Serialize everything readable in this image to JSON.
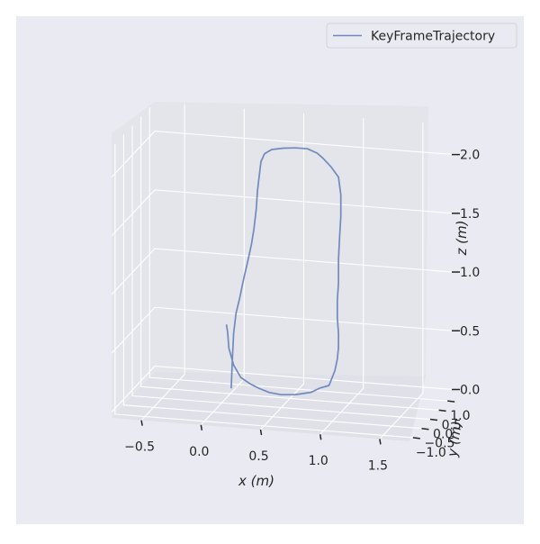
{
  "chart_data": {
    "type": "line",
    "projection": "3d",
    "title": "",
    "xlabel": "x (m)",
    "ylabel": "y (m)",
    "zlabel": "z (m)",
    "x_ticks": [
      "−0.5",
      "0.0",
      "0.5",
      "1.0",
      "1.5"
    ],
    "y_ticks": [
      "−1.0",
      "−0.5",
      "0.0",
      "0.5",
      "1.0"
    ],
    "z_ticks": [
      "0.0",
      "0.5",
      "1.0",
      "1.5",
      "2.0"
    ],
    "xlim": [
      -0.75,
      1.75
    ],
    "ylim": [
      -1.2,
      1.3
    ],
    "zlim": [
      -0.05,
      2.25
    ],
    "grid": true,
    "legend_position": "top-right",
    "series": [
      {
        "name": "KeyFrameTrajectory",
        "color": "#6f8bbe",
        "x": [
          0.08,
          0.09,
          0.1,
          0.12,
          0.15,
          0.18,
          0.22,
          0.25,
          0.27,
          0.29,
          0.3,
          0.32,
          0.33,
          0.36,
          0.42,
          0.52,
          0.62,
          0.72,
          0.8,
          0.85,
          0.92,
          0.98,
          1.0,
          1.0,
          0.99,
          0.98,
          0.98,
          0.97,
          0.97,
          0.98,
          0.98,
          0.97,
          0.95,
          0.92,
          0.9,
          0.82,
          0.75,
          0.62,
          0.5,
          0.4,
          0.31,
          0.24,
          0.16,
          0.1,
          0.06,
          0.05,
          0.04
        ],
        "y": [
          0,
          0,
          0,
          0,
          0,
          0,
          0,
          0,
          0,
          0,
          0,
          0,
          0,
          0,
          0,
          0,
          0,
          0,
          0,
          0,
          0,
          0,
          0,
          0,
          0,
          0,
          0,
          0,
          0,
          0,
          0,
          0,
          0,
          0,
          0,
          0,
          0,
          0,
          0,
          0,
          0,
          0,
          0,
          0,
          0,
          0,
          0
        ],
        "z": [
          0.08,
          0.35,
          0.55,
          0.72,
          0.85,
          1.0,
          1.18,
          1.32,
          1.45,
          1.62,
          1.78,
          1.95,
          2.03,
          2.1,
          2.14,
          2.16,
          2.17,
          2.17,
          2.14,
          2.1,
          2.03,
          1.95,
          1.8,
          1.62,
          1.45,
          1.25,
          1.05,
          0.9,
          0.75,
          0.62,
          0.5,
          0.4,
          0.3,
          0.22,
          0.17,
          0.14,
          0.1,
          0.07,
          0.06,
          0.07,
          0.1,
          0.13,
          0.18,
          0.28,
          0.42,
          0.55,
          0.62
        ]
      }
    ]
  }
}
